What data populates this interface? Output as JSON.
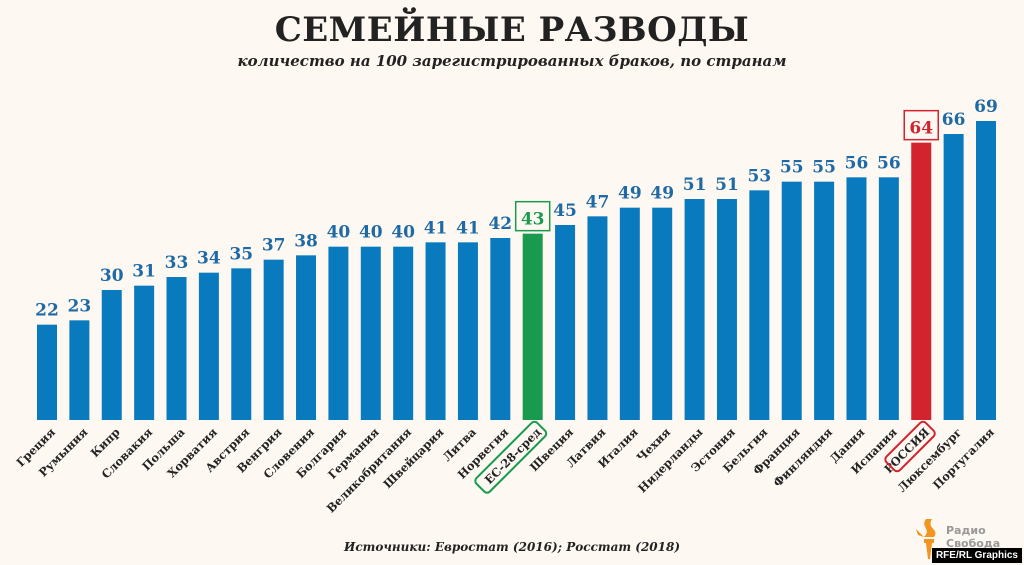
{
  "chart_data": {
    "type": "bar",
    "title": "СЕМЕЙНЫЕ РАЗВОДЫ",
    "subtitle": "количество на 100 зарегистрированных браков, по странам",
    "categories": [
      "Греция",
      "Румыния",
      "Кипр",
      "Словакия",
      "Польша",
      "Хорватия",
      "Австрия",
      "Венгрия",
      "Словения",
      "Болгария",
      "Германия",
      "Великобритания",
      "Швейцария",
      "Литва",
      "Норвегия",
      "ЕС-28-сред",
      "Швеция",
      "Латвия",
      "Италия",
      "Чехия",
      "Нидерланды",
      "Эстония",
      "Бельгия",
      "Франция",
      "Финляндия",
      "Дания",
      "Испания",
      "РОССИЯ",
      "Люксембург",
      "Португалия"
    ],
    "values": [
      22,
      23,
      30,
      31,
      33,
      34,
      35,
      37,
      38,
      40,
      40,
      40,
      41,
      41,
      42,
      43,
      45,
      47,
      49,
      49,
      51,
      51,
      53,
      55,
      55,
      56,
      56,
      64,
      66,
      69
    ],
    "highlights": {
      "ЕС-28-сред": "#1a9a4f",
      "РОССИЯ": "#d2232e"
    },
    "bar_color": "#0a7abf",
    "label_color": "#1f6aa5",
    "ylim": [
      0,
      70
    ],
    "grid": false,
    "legend": "none"
  },
  "source": "Источники: Евростат (2016); Росстат (2018)",
  "logo": {
    "name": "Радио Свобода",
    "line1": "Радио",
    "line2": "Свобода",
    "color": "#f39320"
  },
  "badge": "RFE/RL Graphics"
}
